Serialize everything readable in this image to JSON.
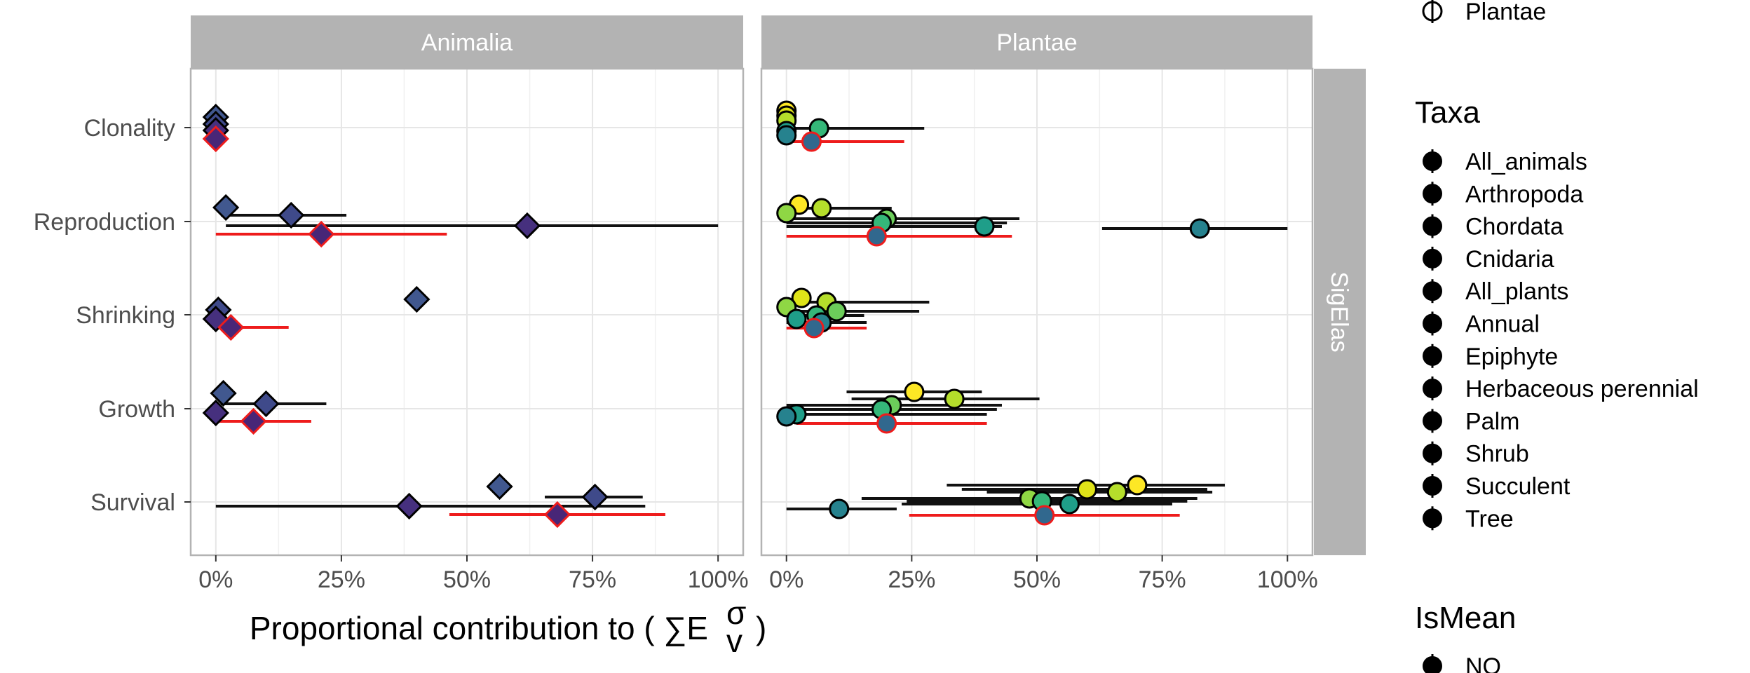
{
  "chart_data": {
    "type": "scatter",
    "title": "",
    "xlabel": "Proportional contribution to ( ∑E",
    "xlabel_symbol_sup": "σ",
    "xlabel_symbol_sub": "v",
    "xlabel_close": ")",
    "x_ticks": [
      "0%",
      "25%",
      "50%",
      "75%",
      "100%"
    ],
    "xlim": [
      -0.05,
      1.05
    ],
    "categories": [
      "Clonality",
      "Reproduction",
      "Shrinking",
      "Growth",
      "Survival"
    ],
    "facet_cols": [
      "Animalia",
      "Plantae"
    ],
    "facet_row": "SigElas",
    "colors": {
      "mean_line": "#ee1c1c",
      "point_edge": "#000000",
      "strip_bg": "#b3b3b3",
      "grid": "#e6e6e6",
      "panel_border": "#b3b3b3",
      "animal_dark": "#4a2a7a",
      "animal_blue": "#3e5a8c"
    },
    "series": [
      {
        "panel": "Animalia",
        "category": "Clonality",
        "x": 0.0,
        "lo": null,
        "hi": null,
        "offset": -15,
        "color": "#41588f",
        "shape": "diamond",
        "mean": false
      },
      {
        "panel": "Animalia",
        "category": "Clonality",
        "x": 0.0,
        "lo": null,
        "hi": null,
        "offset": -5,
        "color": "#3f4a8a",
        "shape": "diamond",
        "mean": false
      },
      {
        "panel": "Animalia",
        "category": "Clonality",
        "x": 0.0,
        "lo": null,
        "hi": null,
        "offset": 4,
        "color": "#46307e",
        "shape": "diamond",
        "mean": false
      },
      {
        "panel": "Animalia",
        "category": "Clonality",
        "x": 0.0,
        "lo": null,
        "hi": null,
        "offset": 16,
        "color": "#482677",
        "shape": "diamond",
        "mean": true
      },
      {
        "panel": "Animalia",
        "category": "Reproduction",
        "x": 0.02,
        "lo": null,
        "hi": null,
        "offset": -20,
        "color": "#41588f",
        "shape": "diamond",
        "mean": false
      },
      {
        "panel": "Animalia",
        "category": "Reproduction",
        "x": 0.15,
        "lo": 0.01,
        "hi": 0.26,
        "offset": -9,
        "color": "#3f4a8a",
        "shape": "diamond",
        "mean": false
      },
      {
        "panel": "Animalia",
        "category": "Reproduction",
        "x": 0.62,
        "lo": 0.02,
        "hi": 1.0,
        "offset": 6,
        "color": "#46307e",
        "shape": "diamond",
        "mean": false
      },
      {
        "panel": "Animalia",
        "category": "Reproduction",
        "x": 0.21,
        "lo": 0.0,
        "hi": 0.46,
        "offset": 18,
        "color": "#482677",
        "shape": "diamond",
        "mean": true
      },
      {
        "panel": "Animalia",
        "category": "Shrinking",
        "x": 0.4,
        "lo": null,
        "hi": null,
        "offset": -22,
        "color": "#41588f",
        "shape": "diamond",
        "mean": false
      },
      {
        "panel": "Animalia",
        "category": "Shrinking",
        "x": 0.005,
        "lo": null,
        "hi": null,
        "offset": -7,
        "color": "#3f4a8a",
        "shape": "diamond",
        "mean": false
      },
      {
        "panel": "Animalia",
        "category": "Shrinking",
        "x": 0.0,
        "lo": null,
        "hi": null,
        "offset": 6,
        "color": "#46307e",
        "shape": "diamond",
        "mean": false
      },
      {
        "panel": "Animalia",
        "category": "Shrinking",
        "x": 0.03,
        "lo": 0.0,
        "hi": 0.145,
        "offset": 18,
        "color": "#482677",
        "shape": "diamond",
        "mean": true
      },
      {
        "panel": "Animalia",
        "category": "Growth",
        "x": 0.015,
        "lo": null,
        "hi": null,
        "offset": -22,
        "color": "#41588f",
        "shape": "diamond",
        "mean": false
      },
      {
        "panel": "Animalia",
        "category": "Growth",
        "x": 0.1,
        "lo": 0.01,
        "hi": 0.22,
        "offset": -7,
        "color": "#3f4a8a",
        "shape": "diamond",
        "mean": false
      },
      {
        "panel": "Animalia",
        "category": "Growth",
        "x": 0.0,
        "lo": null,
        "hi": null,
        "offset": 6,
        "color": "#46307e",
        "shape": "diamond",
        "mean": false
      },
      {
        "panel": "Animalia",
        "category": "Growth",
        "x": 0.075,
        "lo": 0.0,
        "hi": 0.19,
        "offset": 18,
        "color": "#482677",
        "shape": "diamond",
        "mean": true
      },
      {
        "panel": "Animalia",
        "category": "Survival",
        "x": 0.565,
        "lo": null,
        "hi": null,
        "offset": -22,
        "color": "#41588f",
        "shape": "diamond",
        "mean": false
      },
      {
        "panel": "Animalia",
        "category": "Survival",
        "x": 0.755,
        "lo": 0.655,
        "hi": 0.85,
        "offset": -7,
        "color": "#3f4a8a",
        "shape": "diamond",
        "mean": false
      },
      {
        "panel": "Animalia",
        "category": "Survival",
        "x": 0.385,
        "lo": 0.0,
        "hi": 0.855,
        "offset": 6,
        "color": "#46307e",
        "shape": "diamond",
        "mean": false
      },
      {
        "panel": "Animalia",
        "category": "Survival",
        "x": 0.68,
        "lo": 0.465,
        "hi": 0.895,
        "offset": 18,
        "color": "#482677",
        "shape": "diamond",
        "mean": true
      },
      {
        "panel": "Plantae",
        "category": "Clonality",
        "x": 0.0,
        "lo": null,
        "hi": null,
        "offset": -24,
        "color": "#fde725",
        "shape": "circle",
        "mean": false
      },
      {
        "panel": "Plantae",
        "category": "Clonality",
        "x": 0.0,
        "lo": null,
        "hi": null,
        "offset": -17,
        "color": "#dfe318",
        "shape": "circle",
        "mean": false
      },
      {
        "panel": "Plantae",
        "category": "Clonality",
        "x": 0.0,
        "lo": null,
        "hi": null,
        "offset": -10,
        "color": "#b5de2b",
        "shape": "circle",
        "mean": false
      },
      {
        "panel": "Plantae",
        "category": "Clonality",
        "x": 0.065,
        "lo": 0.0,
        "hi": 0.275,
        "offset": 1,
        "color": "#35b779",
        "shape": "circle",
        "mean": false
      },
      {
        "panel": "Plantae",
        "category": "Clonality",
        "x": 0.0,
        "lo": null,
        "hi": null,
        "offset": 5,
        "color": "#1f9e89",
        "shape": "circle",
        "mean": false
      },
      {
        "panel": "Plantae",
        "category": "Clonality",
        "x": 0.0,
        "lo": null,
        "hi": null,
        "offset": 11,
        "color": "#26828e",
        "shape": "circle",
        "mean": false
      },
      {
        "panel": "Plantae",
        "category": "Clonality",
        "x": 0.05,
        "lo": 0.0,
        "hi": 0.235,
        "offset": 20,
        "color": "#31688e",
        "shape": "circle",
        "mean": true
      },
      {
        "panel": "Plantae",
        "category": "Reproduction",
        "x": 0.025,
        "lo": null,
        "hi": null,
        "offset": -24,
        "color": "#fde725",
        "shape": "circle",
        "mean": false
      },
      {
        "panel": "Plantae",
        "category": "Reproduction",
        "x": 0.07,
        "lo": 0.01,
        "hi": 0.21,
        "offset": -19,
        "color": "#b5de2b",
        "shape": "circle",
        "mean": false
      },
      {
        "panel": "Plantae",
        "category": "Reproduction",
        "x": 0.0,
        "lo": null,
        "hi": null,
        "offset": -12,
        "color": "#8fd744",
        "shape": "circle",
        "mean": false
      },
      {
        "panel": "Plantae",
        "category": "Reproduction",
        "x": 0.2,
        "lo": 0.01,
        "hi": 0.465,
        "offset": -4,
        "color": "#6ccd5a",
        "shape": "circle",
        "mean": false
      },
      {
        "panel": "Plantae",
        "category": "Reproduction",
        "x": 0.19,
        "lo": 0.0,
        "hi": 0.44,
        "offset": 2,
        "color": "#35b779",
        "shape": "circle",
        "mean": false
      },
      {
        "panel": "Plantae",
        "category": "Reproduction",
        "x": 0.395,
        "lo": 0.0,
        "hi": 0.43,
        "offset": 7,
        "color": "#1f9e89",
        "shape": "circle",
        "mean": false
      },
      {
        "panel": "Plantae",
        "category": "Reproduction",
        "x": 0.825,
        "lo": 0.63,
        "hi": 1.0,
        "offset": 10,
        "color": "#26828e",
        "shape": "circle",
        "mean": false
      },
      {
        "panel": "Plantae",
        "category": "Reproduction",
        "x": 0.18,
        "lo": 0.0,
        "hi": 0.45,
        "offset": 21,
        "color": "#31688e",
        "shape": "circle",
        "mean": true
      },
      {
        "panel": "Plantae",
        "category": "Shrinking",
        "x": 0.03,
        "lo": null,
        "hi": null,
        "offset": -24,
        "color": "#dfe318",
        "shape": "circle",
        "mean": false
      },
      {
        "panel": "Plantae",
        "category": "Shrinking",
        "x": 0.08,
        "lo": 0.02,
        "hi": 0.285,
        "offset": -18,
        "color": "#b5de2b",
        "shape": "circle",
        "mean": false
      },
      {
        "panel": "Plantae",
        "category": "Shrinking",
        "x": 0.0,
        "lo": null,
        "hi": null,
        "offset": -11,
        "color": "#8fd744",
        "shape": "circle",
        "mean": false
      },
      {
        "panel": "Plantae",
        "category": "Shrinking",
        "x": 0.1,
        "lo": 0.0,
        "hi": 0.265,
        "offset": -5,
        "color": "#6ccd5a",
        "shape": "circle",
        "mean": false
      },
      {
        "panel": "Plantae",
        "category": "Shrinking",
        "x": 0.06,
        "lo": 0.0,
        "hi": 0.155,
        "offset": 1,
        "color": "#35b779",
        "shape": "circle",
        "mean": false
      },
      {
        "panel": "Plantae",
        "category": "Shrinking",
        "x": 0.02,
        "lo": null,
        "hi": null,
        "offset": 6,
        "color": "#1f9e89",
        "shape": "circle",
        "mean": false
      },
      {
        "panel": "Plantae",
        "category": "Shrinking",
        "x": 0.07,
        "lo": 0.0,
        "hi": 0.16,
        "offset": 11,
        "color": "#26828e",
        "shape": "circle",
        "mean": false
      },
      {
        "panel": "Plantae",
        "category": "Shrinking",
        "x": 0.055,
        "lo": 0.0,
        "hi": 0.16,
        "offset": 19,
        "color": "#31688e",
        "shape": "circle",
        "mean": true
      },
      {
        "panel": "Plantae",
        "category": "Growth",
        "x": 0.255,
        "lo": 0.12,
        "hi": 0.39,
        "offset": -24,
        "color": "#fde725",
        "shape": "circle",
        "mean": false
      },
      {
        "panel": "Plantae",
        "category": "Growth",
        "x": 0.335,
        "lo": 0.13,
        "hi": 0.505,
        "offset": -14,
        "color": "#b5de2b",
        "shape": "circle",
        "mean": false
      },
      {
        "panel": "Plantae",
        "category": "Growth",
        "x": 0.21,
        "lo": 0.0,
        "hi": 0.43,
        "offset": -5,
        "color": "#6ccd5a",
        "shape": "circle",
        "mean": false
      },
      {
        "panel": "Plantae",
        "category": "Growth",
        "x": 0.19,
        "lo": 0.0,
        "hi": 0.42,
        "offset": 1,
        "color": "#35b779",
        "shape": "circle",
        "mean": false
      },
      {
        "panel": "Plantae",
        "category": "Growth",
        "x": 0.02,
        "lo": 0.0,
        "hi": 0.4,
        "offset": 8,
        "color": "#1f9e89",
        "shape": "circle",
        "mean": false
      },
      {
        "panel": "Plantae",
        "category": "Growth",
        "x": 0.0,
        "lo": null,
        "hi": null,
        "offset": 11,
        "color": "#26828e",
        "shape": "circle",
        "mean": false
      },
      {
        "panel": "Plantae",
        "category": "Growth",
        "x": 0.2,
        "lo": 0.02,
        "hi": 0.4,
        "offset": 21,
        "color": "#31688e",
        "shape": "circle",
        "mean": true
      },
      {
        "panel": "Plantae",
        "category": "Survival",
        "x": 0.7,
        "lo": 0.32,
        "hi": 0.875,
        "offset": -24,
        "color": "#fde725",
        "shape": "circle",
        "mean": false
      },
      {
        "panel": "Plantae",
        "category": "Survival",
        "x": 0.6,
        "lo": 0.35,
        "hi": 0.84,
        "offset": -18,
        "color": "#dfe318",
        "shape": "circle",
        "mean": false
      },
      {
        "panel": "Plantae",
        "category": "Survival",
        "x": 0.66,
        "lo": 0.4,
        "hi": 0.85,
        "offset": -14,
        "color": "#b5de2b",
        "shape": "circle",
        "mean": false
      },
      {
        "panel": "Plantae",
        "category": "Survival",
        "x": 0.485,
        "lo": 0.15,
        "hi": 0.82,
        "offset": -5,
        "color": "#8fd744",
        "shape": "circle",
        "mean": false
      },
      {
        "panel": "Plantae",
        "category": "Survival",
        "x": 0.51,
        "lo": 0.24,
        "hi": 0.8,
        "offset": -1,
        "color": "#35b779",
        "shape": "circle",
        "mean": false
      },
      {
        "panel": "Plantae",
        "category": "Survival",
        "x": 0.565,
        "lo": 0.23,
        "hi": 0.77,
        "offset": 3,
        "color": "#1f9e89",
        "shape": "circle",
        "mean": false
      },
      {
        "panel": "Plantae",
        "category": "Survival",
        "x": 0.105,
        "lo": 0.0,
        "hi": 0.22,
        "offset": 10,
        "color": "#26828e",
        "shape": "circle",
        "mean": false
      },
      {
        "panel": "Plantae",
        "category": "Survival",
        "x": 0.515,
        "lo": 0.245,
        "hi": 0.785,
        "offset": 19,
        "color": "#31688e",
        "shape": "circle",
        "mean": true
      }
    ],
    "legends": [
      {
        "title": "",
        "entries": [
          "Plantae"
        ]
      },
      {
        "title": "Taxa",
        "entries": [
          "All_animals",
          "Arthropoda",
          "Chordata",
          "Cnidaria",
          "All_plants",
          "Annual",
          "Epiphyte",
          "Herbaceous perennial",
          "Palm",
          "Shrub",
          "Succulent",
          "Tree"
        ]
      },
      {
        "title": "IsMean",
        "entries": [
          "NO"
        ]
      }
    ]
  }
}
